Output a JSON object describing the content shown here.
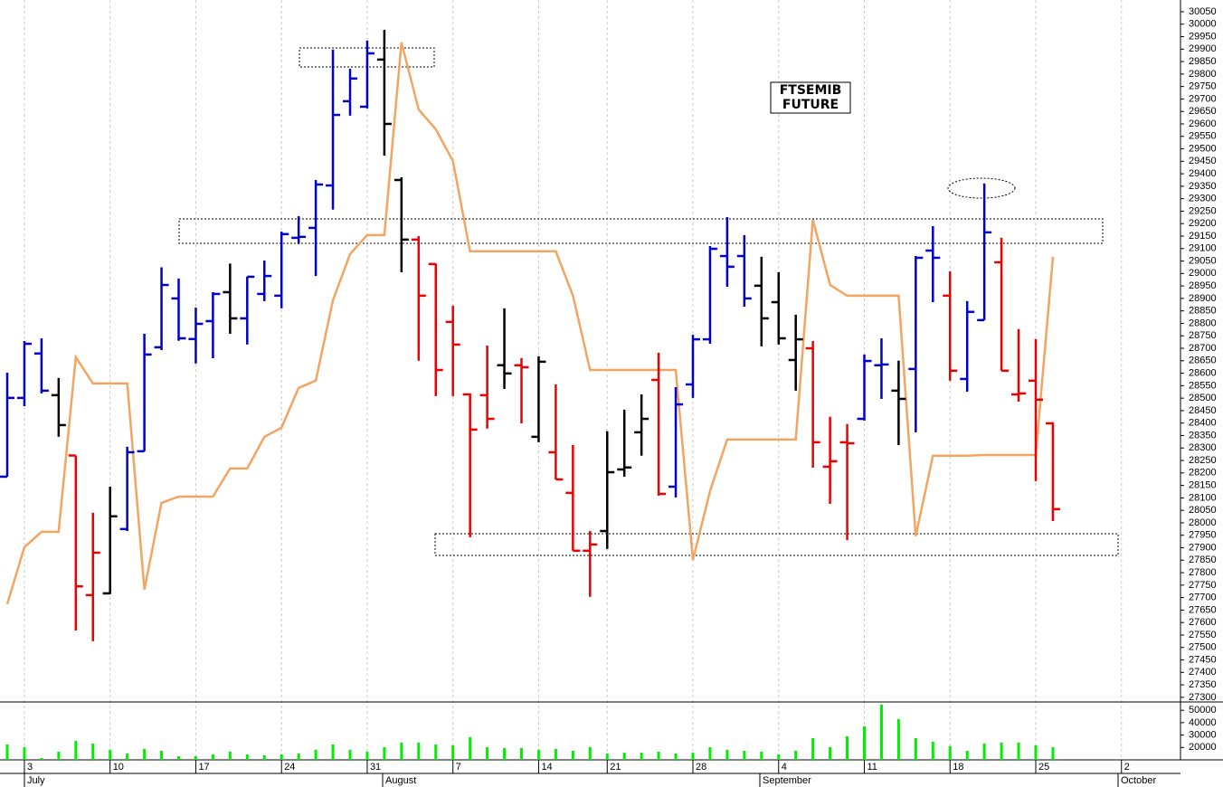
{
  "chart_data": [
    {
      "type": "ohlc",
      "annotation": [
        "FTSEMIB",
        "FUTURE"
      ],
      "ylim": [
        27285,
        30097
      ],
      "yticks": [
        27300,
        27350,
        27400,
        27450,
        27500,
        27550,
        27600,
        27650,
        27700,
        27750,
        27800,
        27850,
        27900,
        27950,
        28000,
        28050,
        28100,
        28150,
        28200,
        28250,
        28300,
        28350,
        28400,
        28450,
        28500,
        28550,
        28600,
        28650,
        28700,
        28750,
        28800,
        28850,
        28900,
        28950,
        29000,
        29050,
        29100,
        29150,
        29200,
        29250,
        29300,
        29350,
        29400,
        29450,
        29500,
        29550,
        29600,
        29650,
        29700,
        29750,
        29800,
        29850,
        29900,
        29950,
        30000,
        30050
      ],
      "open": [
        28185,
        28501,
        28679,
        28512,
        28270,
        27710,
        27717,
        27975,
        28287,
        28704,
        28900,
        28737,
        28809,
        28925,
        28820,
        28918,
        28911,
        29143,
        29183,
        29353,
        29691,
        29669,
        29858,
        29375,
        29136,
        29038,
        28806,
        28515,
        28512,
        28632,
        28632,
        28345,
        28283,
        28120,
        27888,
        27967,
        28214,
        28363,
        28573,
        28145,
        28555,
        28736,
        29070,
        29070,
        28951,
        28885,
        28653,
        28700,
        28225,
        28323,
        28417,
        28632,
        28530,
        28617,
        29092,
        28911,
        28577,
        28813,
        29045,
        28515,
        28570,
        28399,
        null,
        null,
        null,
        null
      ],
      "high": [
        28602,
        28729,
        28740,
        28581,
        28270,
        28040,
        28145,
        28305,
        28758,
        29025,
        28980,
        28863,
        28925,
        29040,
        28987,
        29052,
        29168,
        29230,
        29375,
        29898,
        29821,
        29934,
        29977,
        29386,
        29150,
        29040,
        28871,
        28519,
        28711,
        28860,
        28661,
        28668,
        28555,
        28312,
        27967,
        28367,
        28454,
        28515,
        28682,
        28544,
        28754,
        29110,
        29226,
        29154,
        29067,
        29005,
        28835,
        28729,
        28425,
        28396,
        28675,
        28740,
        28650,
        29070,
        29190,
        29009,
        28889,
        29361,
        29143,
        28777,
        28737,
        28403,
        null,
        null,
        null,
        null
      ],
      "low": [
        28185,
        28468,
        28519,
        28345,
        27568,
        27525,
        27714,
        27967,
        28287,
        28693,
        28730,
        28639,
        28660,
        28758,
        28715,
        28889,
        28860,
        29118,
        28990,
        29256,
        29633,
        29662,
        29473,
        29005,
        28650,
        28508,
        28508,
        27942,
        28378,
        28537,
        28399,
        28323,
        28174,
        27888,
        27703,
        27895,
        28185,
        28269,
        28109,
        28102,
        28501,
        28718,
        28947,
        28867,
        28708,
        28715,
        28530,
        28221,
        28076,
        27931,
        28410,
        28497,
        28312,
        28363,
        28885,
        28570,
        28526,
        28813,
        28610,
        28486,
        28167,
        28007,
        null,
        null,
        null,
        null
      ],
      "close": [
        28501,
        28718,
        28530,
        28392,
        27745,
        27880,
        28026,
        28283,
        28675,
        28954,
        28740,
        28798,
        28918,
        28820,
        28987,
        28990,
        29158,
        29147,
        29357,
        29636,
        29782,
        29883,
        29600,
        29136,
        28911,
        28613,
        28715,
        28374,
        28417,
        28599,
        28624,
        28646,
        28174,
        27888,
        27913,
        28203,
        28222,
        28417,
        28116,
        28475,
        28736,
        29099,
        29027,
        28900,
        28820,
        28740,
        28736,
        28323,
        28247,
        28319,
        28649,
        28635,
        28497,
        29063,
        29063,
        28610,
        28846,
        29165,
        28610,
        28519,
        28494,
        28055,
        null,
        null,
        null,
        null
      ],
      "colors": [
        "#0000cc",
        "#0000cc",
        "#0000cc",
        "#000000",
        "#ee0000",
        "#ee0000",
        "#000000",
        "#0000cc",
        "#0000cc",
        "#0000cc",
        "#0000cc",
        "#0000cc",
        "#0000cc",
        "#000000",
        "#0000cc",
        "#0000cc",
        "#0000cc",
        "#0000cc",
        "#0000cc",
        "#0000cc",
        "#0000cc",
        "#0000cc",
        "#000000",
        "#000000",
        "#ee0000",
        "#ee0000",
        "#ee0000",
        "#ee0000",
        "#ee0000",
        "#000000",
        "#ee0000",
        "#000000",
        "#ee0000",
        "#ee0000",
        "#ee0000",
        "#000000",
        "#000000",
        "#000000",
        "#ee0000",
        "#0000cc",
        "#0000cc",
        "#0000cc",
        "#0000cc",
        "#0000cc",
        "#000000",
        "#000000",
        "#000000",
        "#ee0000",
        "#ee0000",
        "#ee0000",
        "#0000cc",
        "#0000cc",
        "#000000",
        "#0000cc",
        "#0000cc",
        "#ee0000",
        "#0000cc",
        "#0000cc",
        "#ee0000",
        "#ee0000",
        "#ee0000",
        "#ee0000",
        null,
        null,
        null,
        null
      ],
      "line": {
        "color": "#f4a460",
        "values": [
          27674,
          27902,
          27964,
          27964,
          28664,
          28559,
          28559,
          28559,
          27732,
          28080,
          28105,
          28105,
          28105,
          28218,
          28218,
          28345,
          28381,
          28541,
          28570,
          28893,
          29078,
          29154,
          29154,
          29927,
          29658,
          29578,
          29451,
          29089,
          29089,
          29089,
          29089,
          29089,
          29089,
          28911,
          28613,
          28613,
          28613,
          28613,
          28613,
          28613,
          27851,
          28127,
          28334,
          28334,
          28334,
          28334,
          28334,
          29216,
          28954,
          28911,
          28911,
          28911,
          28911,
          27946,
          28269,
          28269,
          28269,
          28272,
          28272,
          28272,
          28272,
          29067,
          null,
          null,
          null,
          null
        ]
      }
    },
    {
      "type": "bar",
      "color": "#00ee00",
      "grid": true,
      "ylim": [
        10000,
        56700
      ],
      "yticks": [
        20000,
        30000,
        40000,
        50000
      ],
      "categories": [
        null,
        "3",
        null,
        null,
        null,
        null,
        "10",
        null,
        null,
        null,
        null,
        "17",
        null,
        null,
        null,
        null,
        "24",
        null,
        null,
        null,
        null,
        "31",
        null,
        null,
        null,
        null,
        "7",
        null,
        null,
        null,
        null,
        "14",
        null,
        null,
        null,
        "21",
        null,
        null,
        null,
        null,
        "28",
        null,
        null,
        null,
        null,
        "4",
        null,
        null,
        null,
        null,
        "11",
        null,
        null,
        null,
        null,
        "18",
        null,
        null,
        null,
        null,
        "25",
        null,
        null,
        null,
        null,
        "2"
      ],
      "values": [
        22400,
        20200,
        11500,
        16600,
        25300,
        23100,
        18000,
        15100,
        18800,
        17300,
        12900,
        12900,
        14400,
        16600,
        14400,
        13700,
        14400,
        15100,
        18000,
        22400,
        18000,
        16600,
        20200,
        23900,
        23900,
        22400,
        21700,
        28300,
        20200,
        19500,
        19500,
        18000,
        18800,
        17300,
        20200,
        15100,
        15800,
        15800,
        16600,
        15100,
        15800,
        20200,
        18000,
        17300,
        16600,
        14400,
        17300,
        27500,
        20200,
        29000,
        37000,
        54500,
        42900,
        27500,
        24600,
        21000,
        17300,
        23100,
        23900,
        23900,
        21700,
        20200,
        null,
        null,
        null,
        null
      ],
      "months": [
        "July",
        "August",
        "September",
        "October"
      ]
    }
  ]
}
